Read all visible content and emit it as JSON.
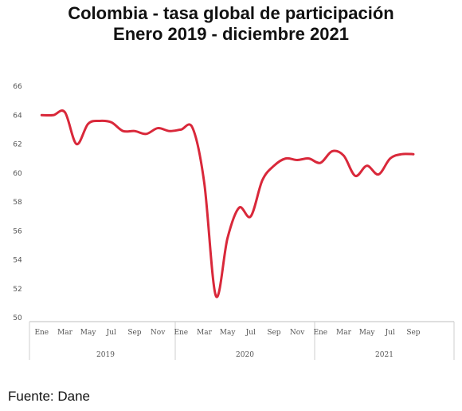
{
  "chart_data": {
    "type": "line",
    "title": "Colombia - tasa global de participación",
    "subtitle": "Enero 2019 - diciembre 2021",
    "xlabel": "",
    "ylabel": "",
    "ylim": [
      50,
      66
    ],
    "y_ticks": [
      50,
      52,
      54,
      56,
      58,
      60,
      62,
      64,
      66
    ],
    "grid": false,
    "legend": "none",
    "x_tick_labels": [
      "Ene",
      "Mar",
      "May",
      "Jul",
      "Sep",
      "Nov",
      "Ene",
      "Mar",
      "May",
      "Jul",
      "Sep",
      "Nov",
      "Ene",
      "Mar",
      "May",
      "Jul",
      "Sep"
    ],
    "years": [
      "2019",
      "2020",
      "2021"
    ],
    "series": [
      {
        "color": "#d9283a",
        "x": [
          "Ene 2019",
          "Feb 2019",
          "Mar 2019",
          "Abr 2019",
          "May 2019",
          "Jun 2019",
          "Jul 2019",
          "Ago 2019",
          "Sep 2019",
          "Oct 2019",
          "Nov 2019",
          "Dic 2019",
          "Ene 2020",
          "Feb 2020",
          "Mar 2020",
          "Abr 2020",
          "May 2020",
          "Jun 2020",
          "Jul 2020",
          "Ago 2020",
          "Sep 2020",
          "Oct 2020",
          "Nov 2020",
          "Dic 2020",
          "Ene 2021",
          "Feb 2021",
          "Mar 2021",
          "Abr 2021",
          "May 2021",
          "Jun 2021",
          "Jul 2021",
          "Ago 2021",
          "Sep 2021"
        ],
        "values": [
          64.0,
          64.0,
          64.2,
          62.0,
          63.4,
          63.6,
          63.5,
          62.9,
          62.9,
          62.7,
          63.1,
          62.9,
          63.0,
          63.1,
          59.3,
          51.5,
          55.5,
          57.6,
          57.0,
          59.5,
          60.5,
          61.0,
          60.9,
          61.0,
          60.7,
          61.5,
          61.2,
          59.8,
          60.5,
          59.9,
          61.0,
          61.3,
          61.3
        ]
      }
    ]
  },
  "source_note": "Fuente: Dane"
}
